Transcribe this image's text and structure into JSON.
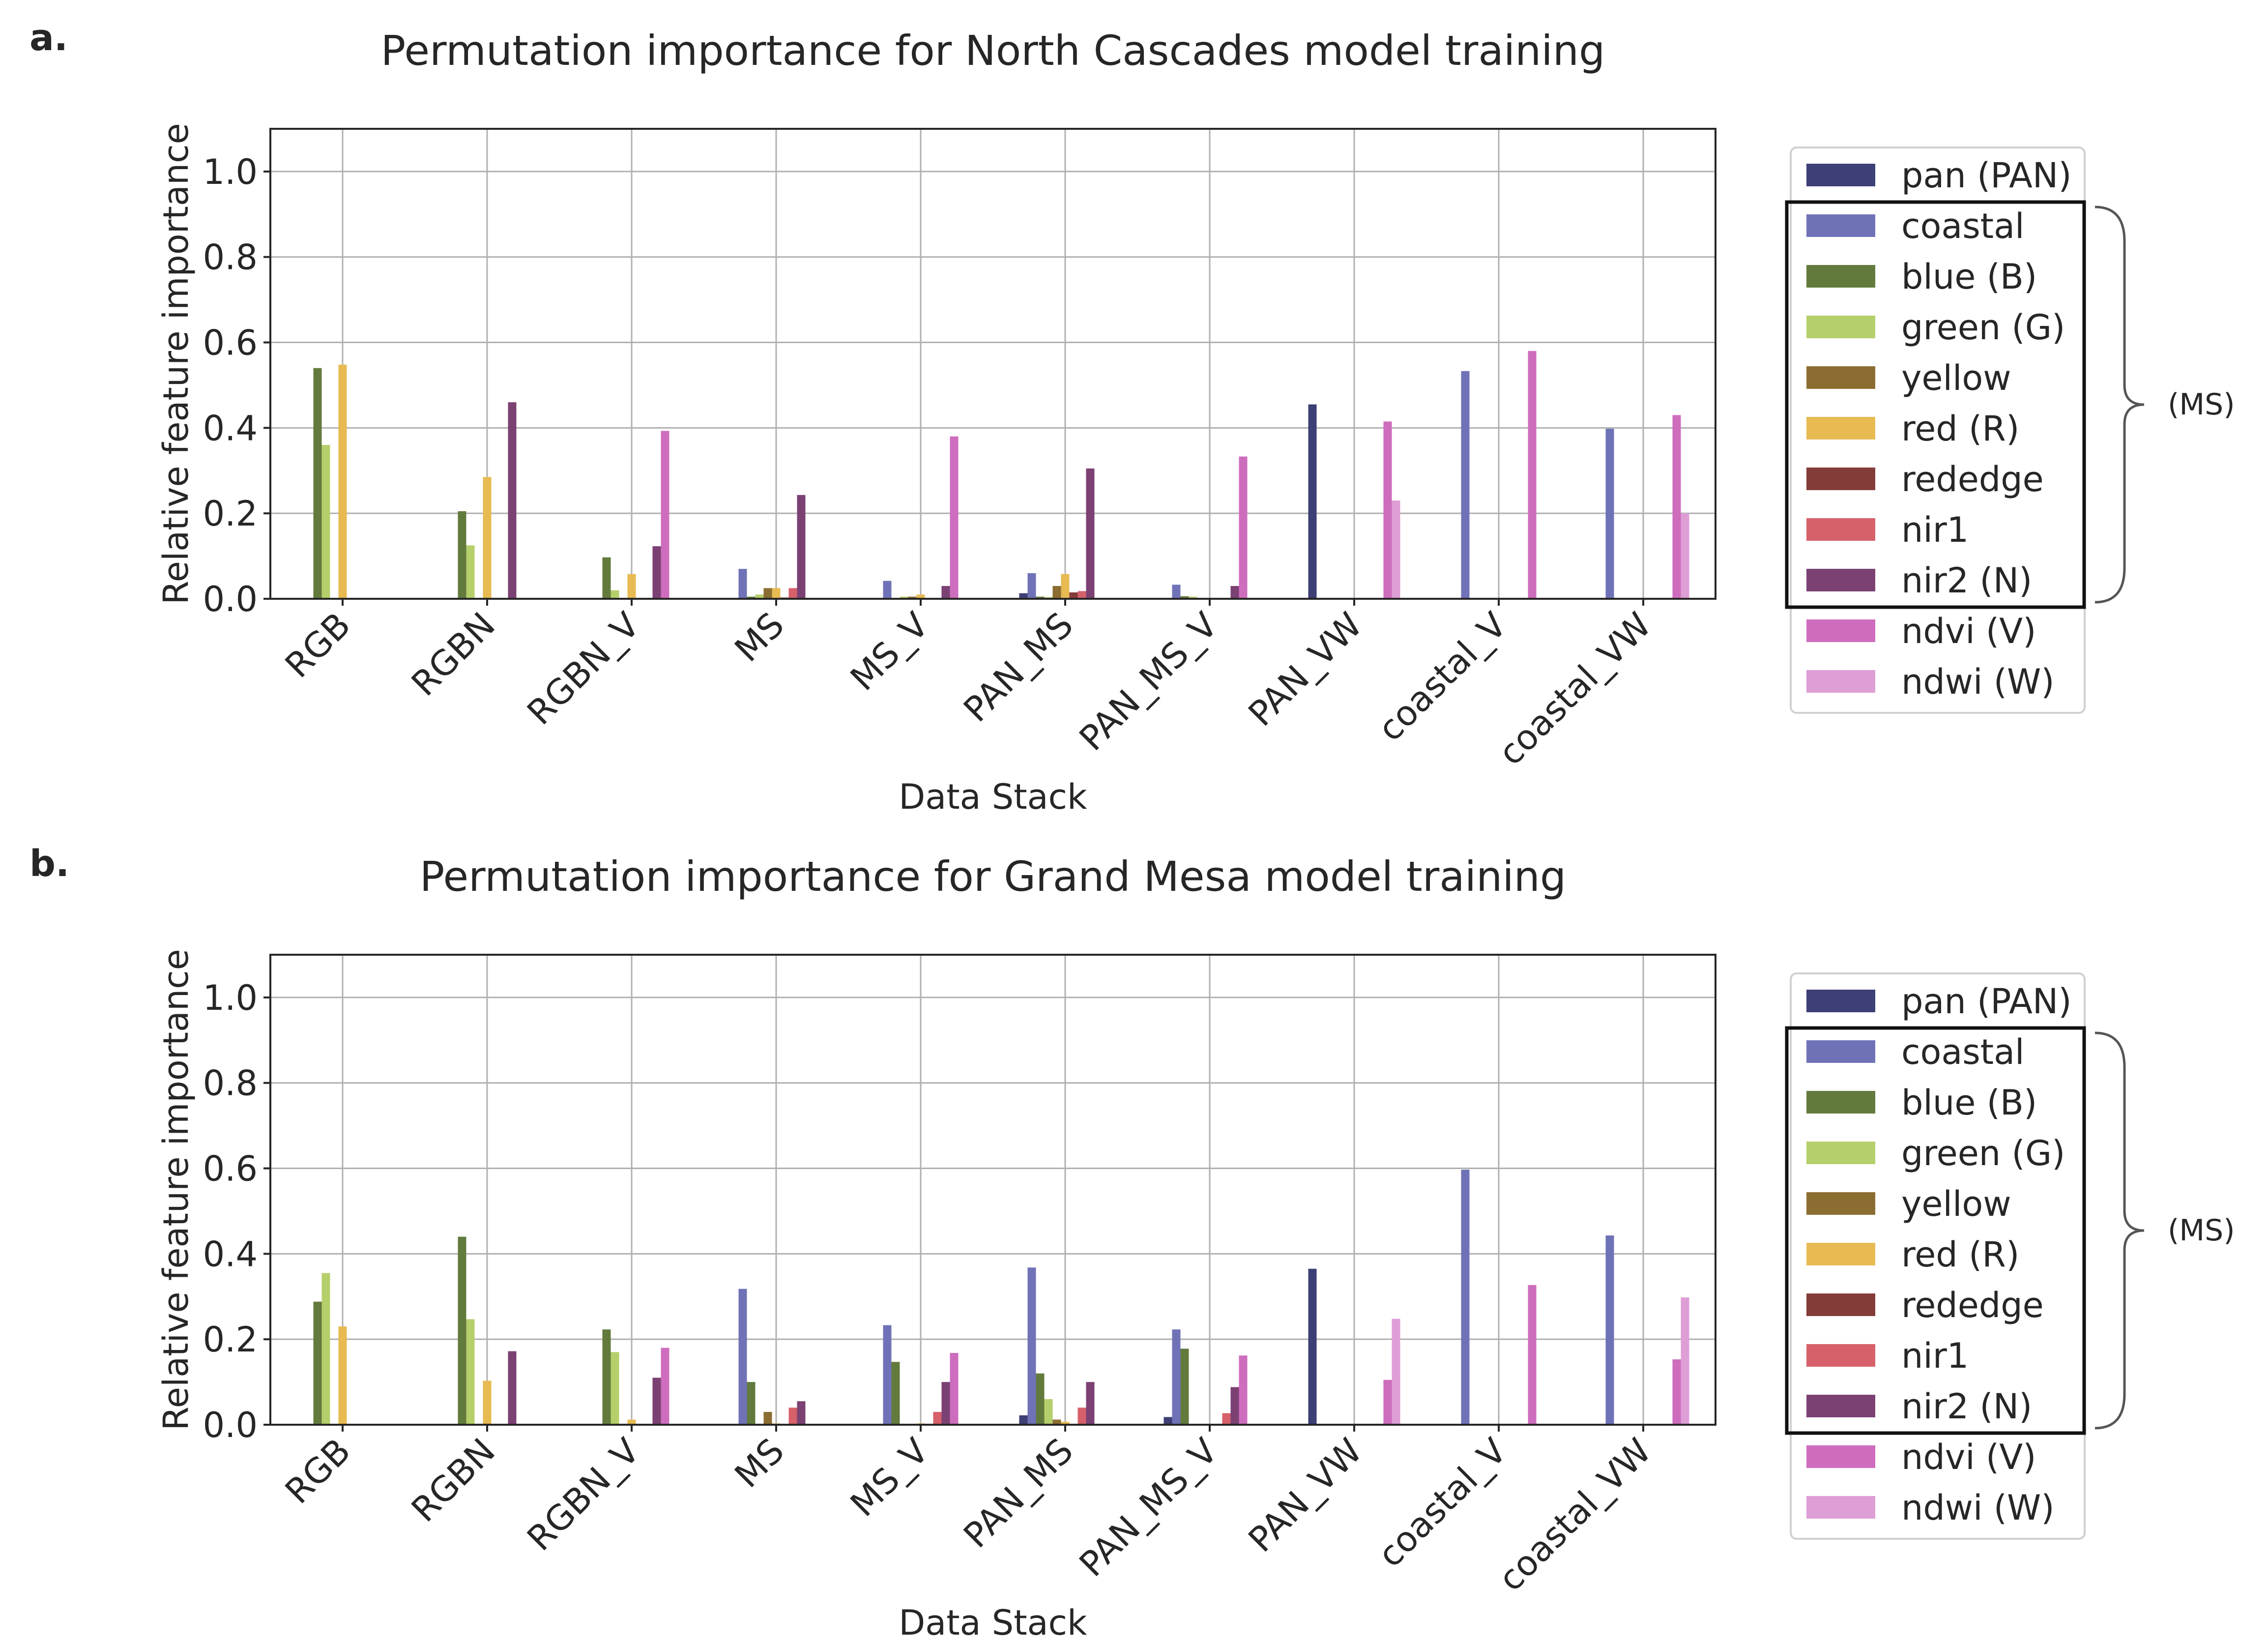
{
  "chart_data": [
    {
      "panel_label": "a.",
      "type": "bar",
      "title": "Permutation importance for North Cascades model training",
      "xlabel": "Data Stack",
      "ylabel": "Relative feature importance",
      "ylim": [
        0,
        1.1
      ],
      "yticks": [
        "0.0",
        "0.2",
        "0.4",
        "0.6",
        "0.8",
        "1.0"
      ],
      "grid": true,
      "legend_position": "right",
      "categories": [
        "RGB",
        "RGBN",
        "RGBN_V",
        "MS",
        "MS_V",
        "PAN_MS",
        "PAN_MS_V",
        "PAN_VW",
        "coastal_V",
        "coastal_VW"
      ],
      "series": [
        {
          "name": "pan (PAN)",
          "color": "#3d3f75",
          "values": [
            0,
            0,
            0,
            0,
            0,
            0.013,
            0,
            0.455,
            0,
            0
          ]
        },
        {
          "name": "coastal",
          "color": "#7072b8",
          "values": [
            0,
            0,
            0,
            0.07,
            0.042,
            0.06,
            0.033,
            0,
            0.533,
            0.398
          ]
        },
        {
          "name": "blue (B)",
          "color": "#637a3d",
          "values": [
            0.54,
            0.205,
            0.097,
            0.005,
            0,
            0.005,
            0.006,
            0,
            0,
            0
          ]
        },
        {
          "name": "green (G)",
          "color": "#b5cf6b",
          "values": [
            0.36,
            0.125,
            0.02,
            0.01,
            0.005,
            0.004,
            0.005,
            0,
            0,
            0
          ]
        },
        {
          "name": "yellow",
          "color": "#8c6d31",
          "values": [
            0,
            0,
            0,
            0.025,
            0.005,
            0.03,
            0,
            0,
            0,
            0
          ]
        },
        {
          "name": "red (R)",
          "color": "#e7ba52",
          "values": [
            0.548,
            0.285,
            0.058,
            0.025,
            0.01,
            0.058,
            0,
            0,
            0,
            0
          ]
        },
        {
          "name": "rededge",
          "color": "#843c39",
          "values": [
            0,
            0,
            0,
            0.003,
            0,
            0.015,
            0,
            0,
            0,
            0
          ]
        },
        {
          "name": "nir1",
          "color": "#d6616b",
          "values": [
            0,
            0,
            0,
            0.025,
            0,
            0.018,
            0,
            0,
            0,
            0
          ]
        },
        {
          "name": "nir2 (N)",
          "color": "#7b4173",
          "values": [
            0,
            0.46,
            0.123,
            0.243,
            0.03,
            0.305,
            0.03,
            0,
            0,
            0
          ]
        },
        {
          "name": "ndvi (V)",
          "color": "#ce6dbd",
          "values": [
            0,
            0,
            0.393,
            0,
            0.38,
            0,
            0.333,
            0.415,
            0.58,
            0.43
          ]
        },
        {
          "name": "ndwi (W)",
          "color": "#de9ed6",
          "values": [
            0,
            0,
            0,
            0,
            0,
            0,
            0,
            0.23,
            0,
            0.2
          ]
        }
      ],
      "legend_group_label": "(MS)"
    },
    {
      "panel_label": "b.",
      "type": "bar",
      "title": "Permutation importance for Grand Mesa model training",
      "xlabel": "Data Stack",
      "ylabel": "Relative feature importance",
      "ylim": [
        0,
        1.1
      ],
      "yticks": [
        "0.0",
        "0.2",
        "0.4",
        "0.6",
        "0.8",
        "1.0"
      ],
      "grid": true,
      "legend_position": "right",
      "categories": [
        "RGB",
        "RGBN",
        "RGBN_V",
        "MS",
        "MS_V",
        "PAN_MS",
        "PAN_MS_V",
        "PAN_VW",
        "coastal_V",
        "coastal_VW"
      ],
      "series": [
        {
          "name": "pan (PAN)",
          "color": "#3d3f75",
          "values": [
            0,
            0,
            0,
            0,
            0,
            0.022,
            0.018,
            0.365,
            0,
            0
          ]
        },
        {
          "name": "coastal",
          "color": "#7072b8",
          "values": [
            0,
            0,
            0,
            0.318,
            0.233,
            0.368,
            0.223,
            0,
            0.597,
            0.443
          ]
        },
        {
          "name": "blue (B)",
          "color": "#637a3d",
          "values": [
            0.288,
            0.44,
            0.223,
            0.1,
            0.147,
            0.12,
            0.178,
            0,
            0,
            0
          ]
        },
        {
          "name": "green (G)",
          "color": "#b5cf6b",
          "values": [
            0.355,
            0.247,
            0.17,
            0,
            0,
            0.06,
            0,
            0,
            0,
            0
          ]
        },
        {
          "name": "yellow",
          "color": "#8c6d31",
          "values": [
            0,
            0,
            0,
            0.03,
            0,
            0.012,
            0,
            0,
            0,
            0
          ]
        },
        {
          "name": "red (R)",
          "color": "#e7ba52",
          "values": [
            0.23,
            0.103,
            0.012,
            0.003,
            0.003,
            0.007,
            0,
            0,
            0,
            0
          ]
        },
        {
          "name": "rededge",
          "color": "#843c39",
          "values": [
            0,
            0,
            0,
            0,
            0,
            0,
            0,
            0,
            0,
            0
          ]
        },
        {
          "name": "nir1",
          "color": "#d6616b",
          "values": [
            0,
            0,
            0,
            0.04,
            0.03,
            0.04,
            0.027,
            0,
            0,
            0
          ]
        },
        {
          "name": "nir2 (N)",
          "color": "#7b4173",
          "values": [
            0,
            0.172,
            0.11,
            0.055,
            0.1,
            0.1,
            0.088,
            0,
            0,
            0
          ]
        },
        {
          "name": "ndvi (V)",
          "color": "#ce6dbd",
          "values": [
            0,
            0,
            0.18,
            0,
            0.168,
            0,
            0.162,
            0.105,
            0.327,
            0.153
          ]
        },
        {
          "name": "ndwi (W)",
          "color": "#de9ed6",
          "values": [
            0,
            0,
            0,
            0,
            0,
            0,
            0,
            0.248,
            0,
            0.298
          ]
        }
      ],
      "legend_group_label": "(MS)"
    }
  ]
}
